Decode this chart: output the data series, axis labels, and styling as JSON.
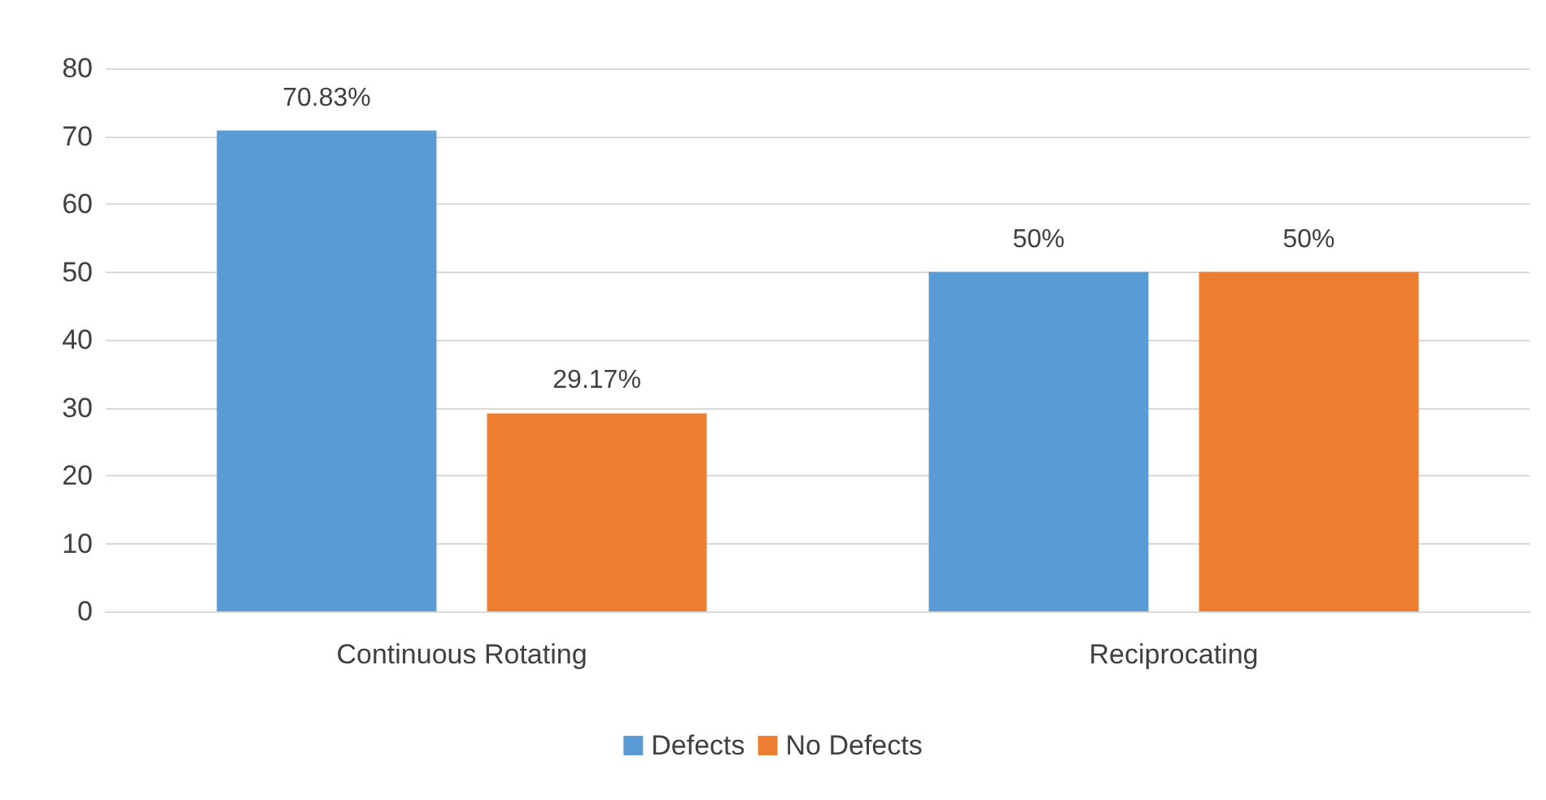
{
  "chart_data": {
    "type": "bar",
    "categories": [
      "Continuous Rotating",
      "Reciprocating"
    ],
    "series": [
      {
        "name": "Defects",
        "color": "#5b9bd5",
        "values": [
          70.83,
          50
        ],
        "value_labels": [
          "70.83%",
          "50%"
        ]
      },
      {
        "name": "No Defects",
        "color": "#ed7d31",
        "values": [
          29.17,
          50
        ],
        "value_labels": [
          "29.17%",
          "50%"
        ]
      }
    ],
    "ylim": [
      0,
      80
    ],
    "yticks": [
      0,
      10,
      20,
      30,
      40,
      50,
      60,
      70,
      80
    ],
    "grid": "y",
    "legend": "bottom"
  }
}
